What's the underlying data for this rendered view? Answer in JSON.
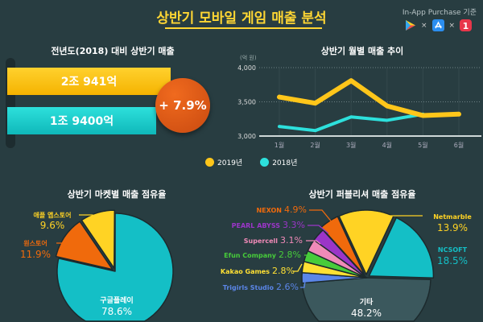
{
  "title": "상반기 모바일 게임 매출 분석",
  "basis": "In-App Purchase 기준",
  "stores_icons": [
    "google-play-icon",
    "app-store-icon",
    "onestore-icon"
  ],
  "times": "×",
  "comparison": {
    "title": "전년도(2018) 대비 상반기 매출",
    "y2019": "2조 941억",
    "y2018": "1조 9400억",
    "growth": "+ 7.9%"
  },
  "chart_data": [
    {
      "type": "line",
      "title": "상반기 월별 매출 추이",
      "unit": "(억 원)",
      "x": [
        "1월",
        "2월",
        "3월",
        "4월",
        "5월",
        "6월"
      ],
      "yticks": [
        "4,000",
        "3,500",
        "3,000"
      ],
      "ylim": [
        3000,
        4000
      ],
      "series": [
        {
          "name": "2019년",
          "color": "#ffc61a",
          "values": [
            3570,
            3480,
            3810,
            3440,
            3300,
            3320
          ]
        },
        {
          "name": "2018년",
          "color": "#2de0dc",
          "values": [
            3140,
            3080,
            3280,
            3230,
            3320,
            null
          ]
        }
      ]
    },
    {
      "type": "pie",
      "title": "상반기 마켓별 매출 점유율",
      "slices": [
        {
          "label": "구글플레이",
          "value": 78.6,
          "pct": "78.6%",
          "color": "#14bfc6"
        },
        {
          "label": "원스토어",
          "value": 11.9,
          "pct": "11.9%",
          "color": "#f06a0c"
        },
        {
          "label": "애플 앱스토어",
          "value": 9.6,
          "pct": "9.6%",
          "color": "#ffd324"
        }
      ]
    },
    {
      "type": "pie",
      "title": "상반기 퍼블리셔 매출 점유율",
      "slices": [
        {
          "label": "Netmarble",
          "value": 13.9,
          "pct": "13.9%",
          "color": "#ffd324"
        },
        {
          "label": "NCSOFT",
          "value": 18.5,
          "pct": "18.5%",
          "color": "#14bfc6"
        },
        {
          "label": "기타",
          "value": 48.2,
          "pct": "48.2%",
          "color": "#3b585d"
        },
        {
          "label": "Trigirls Studio",
          "value": 2.6,
          "pct": "2.6%",
          "color": "#5b86e8"
        },
        {
          "label": "Kakao Games",
          "value": 2.8,
          "pct": "2.8%",
          "color": "#ffe033"
        },
        {
          "label": "Efun Company",
          "value": 2.8,
          "pct": "2.8%",
          "color": "#47cc3a"
        },
        {
          "label": "Supercell",
          "value": 3.1,
          "pct": "3.1%",
          "color": "#f08ab8"
        },
        {
          "label": "PEARL ABYSS",
          "value": 3.3,
          "pct": "3.3%",
          "color": "#9b35c8"
        },
        {
          "label": "NEXON",
          "value": 4.9,
          "pct": "4.9%",
          "color": "#f06a0c"
        }
      ]
    }
  ]
}
